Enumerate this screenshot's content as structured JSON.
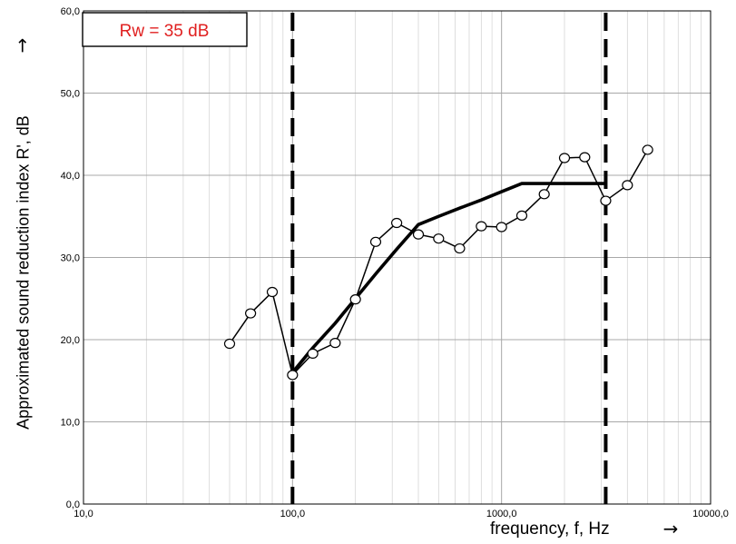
{
  "chart_data": {
    "type": "line",
    "xscale": "log",
    "xlim": [
      10,
      10000
    ],
    "ylim": [
      0,
      60
    ],
    "x_ticks": [
      "10,0",
      "100,0",
      "1000,0",
      "10000,0"
    ],
    "y_ticks": [
      "0,0",
      "10,0",
      "20,0",
      "30,0",
      "40,0",
      "50,0",
      "60,0"
    ],
    "xlabel": "frequency, f, Hz",
    "ylabel": "Approximated sound reduction index R', dB",
    "x_arrow": "→",
    "y_arrow": "→",
    "grid": true,
    "annotation": "Rw = 35 dB",
    "annotation_color": "#e02020",
    "vlines": [
      100,
      3150
    ],
    "series": [
      {
        "marker": "circle",
        "x": [
          50,
          63,
          80,
          100,
          125,
          160,
          200,
          250,
          315,
          400,
          500,
          630,
          800,
          1000,
          1250,
          1600,
          2000,
          2500,
          3150,
          4000,
          5000
        ],
        "y": [
          19.5,
          23.2,
          25.8,
          15.7,
          18.3,
          19.6,
          24.9,
          31.9,
          34.2,
          32.8,
          32.3,
          31.1,
          33.8,
          33.7,
          35.1,
          37.7,
          42.1,
          42.2,
          36.9,
          38.8,
          43.1
        ]
      },
      {
        "marker": "none",
        "x": [
          100,
          125,
          160,
          200,
          250,
          315,
          400,
          500,
          630,
          800,
          1000,
          1250,
          1600,
          2000,
          2500,
          3150
        ],
        "y": [
          16,
          19,
          22,
          25,
          28,
          31,
          34,
          35,
          36,
          37,
          38,
          39,
          39,
          39,
          39,
          39
        ]
      }
    ]
  }
}
